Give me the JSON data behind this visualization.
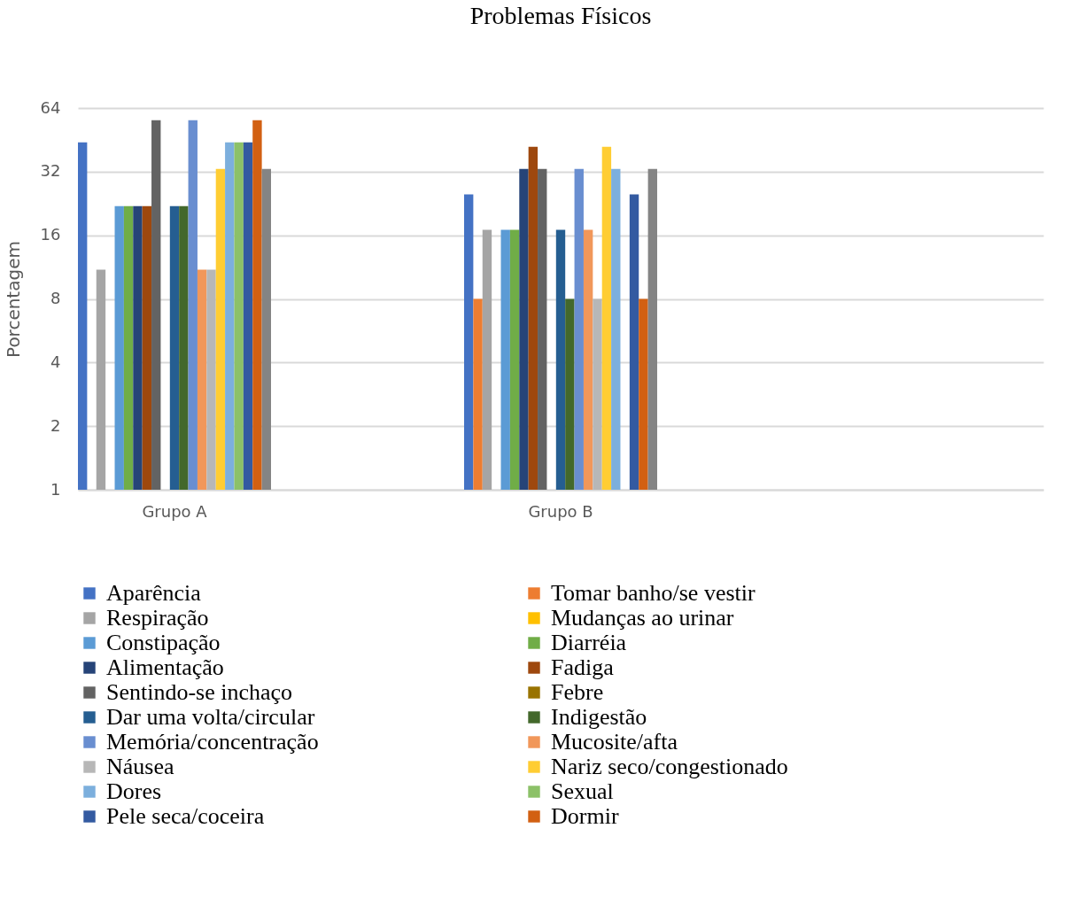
{
  "chart_data": {
    "type": "bar",
    "title": "Problemas Físicos",
    "ylabel": "Porcentagem",
    "categories": [
      "Grupo A",
      "Grupo B",
      null
    ],
    "log": "y",
    "ylim": [
      1,
      64
    ],
    "yticks": [
      1,
      2,
      4,
      8,
      16,
      32,
      64
    ],
    "grid": "y",
    "legend": "bottom",
    "series": [
      {
        "name": "Aparência",
        "color": "#4472c4",
        "values": [
          44,
          25,
          null
        ]
      },
      {
        "name": "Tomar banho/se vestir",
        "color": "#ed7d31",
        "values": [
          1,
          8,
          null
        ]
      },
      {
        "name": "Respiração",
        "color": "#a5a5a5",
        "values": [
          11,
          17,
          null
        ]
      },
      {
        "name": "Mudanças ao urinar",
        "color": "#ffc000",
        "values": [
          1,
          1,
          null
        ]
      },
      {
        "name": "Constipação",
        "color": "#5b9bd5",
        "values": [
          22,
          17,
          null
        ]
      },
      {
        "name": "Diarréia",
        "color": "#70ad47",
        "values": [
          22,
          17,
          null
        ]
      },
      {
        "name": "Alimentação",
        "color": "#264478",
        "values": [
          22,
          33,
          null
        ]
      },
      {
        "name": "Fadiga",
        "color": "#9e480e",
        "values": [
          22,
          42,
          null
        ]
      },
      {
        "name": "Sentindo-se inchaço",
        "color": "#636363",
        "values": [
          56,
          33,
          null
        ]
      },
      {
        "name": "Febre",
        "color": "#997300",
        "values": [
          1,
          1,
          null
        ]
      },
      {
        "name": "Dar uma volta/circular",
        "color": "#255e91",
        "values": [
          22,
          17,
          null
        ]
      },
      {
        "name": "Indigestão",
        "color": "#43682b",
        "values": [
          22,
          8,
          null
        ]
      },
      {
        "name": "Memória/concentração",
        "color": "#698ed0",
        "values": [
          56,
          33,
          null
        ]
      },
      {
        "name": "Mucosite/afta",
        "color": "#f1975a",
        "values": [
          11,
          17,
          null
        ]
      },
      {
        "name": "Náusea",
        "color": "#b7b7b7",
        "values": [
          11,
          8,
          null
        ]
      },
      {
        "name": "Nariz seco/congestionado",
        "color": "#ffcd33",
        "values": [
          33,
          42,
          null
        ]
      },
      {
        "name": "Dores",
        "color": "#7cafdd",
        "values": [
          44,
          33,
          null
        ]
      },
      {
        "name": "Sexual",
        "color": "#8cc168",
        "values": [
          44,
          1,
          null
        ]
      },
      {
        "name": "Pele seca/coceira",
        "color": "#335aa1",
        "values": [
          44,
          25,
          null
        ]
      },
      {
        "name": "Dormir",
        "color": "#d26012",
        "values": [
          56,
          8,
          null
        ]
      },
      {
        "color": "#848484",
        "values": [
          33,
          33,
          null
        ]
      }
    ]
  }
}
